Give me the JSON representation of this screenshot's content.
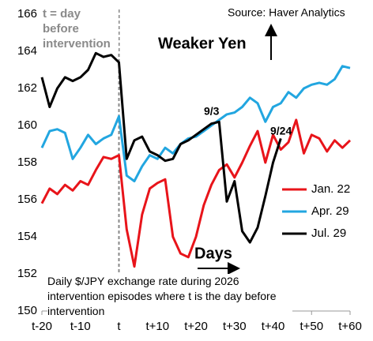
{
  "chart_data": {
    "type": "line",
    "source": "Source: Haver Analytics",
    "annotation_left": "t = day before intervention",
    "annotation_up": "Weaker Yen",
    "annotation_right": "Days",
    "caption": "Daily $/JPY exchange rate during 2026 intervention episodes where t is the day before intervention",
    "label_a": "9/3",
    "label_b": "9/24",
    "vline": 0,
    "x": [
      -20,
      -18,
      -16,
      -14,
      -12,
      -10,
      -8,
      -6,
      -4,
      -2,
      0,
      2,
      4,
      6,
      8,
      10,
      12,
      14,
      16,
      18,
      20,
      22,
      24,
      26,
      28,
      30,
      32,
      34,
      36,
      38,
      40,
      42,
      44,
      46,
      48,
      50,
      52,
      54,
      56,
      58,
      60
    ],
    "series": [
      {
        "name": "Jan. 22",
        "color": "#e8141a",
        "values": [
          155.8,
          156.6,
          156.3,
          156.8,
          156.5,
          157.0,
          156.8,
          157.6,
          158.3,
          158.2,
          158.4,
          154.4,
          152.4,
          155.2,
          156.6,
          156.9,
          157.1,
          154.0,
          153.1,
          152.9,
          154.0,
          155.7,
          156.8,
          157.6,
          157.9,
          157.2,
          158.0,
          158.9,
          159.7,
          158.0,
          159.5,
          158.7,
          159.1,
          160.3,
          158.5,
          159.5,
          159.3,
          158.6,
          159.2,
          158.8,
          159.2
        ]
      },
      {
        "name": "Apr. 29",
        "color": "#22a6e0",
        "values": [
          158.8,
          159.7,
          159.8,
          159.6,
          158.2,
          158.8,
          159.5,
          159.0,
          159.3,
          159.5,
          160.5,
          157.3,
          157.0,
          157.8,
          158.4,
          158.2,
          158.8,
          158.5,
          159.0,
          159.3,
          159.4,
          159.7,
          160.0,
          160.3,
          160.6,
          160.7,
          161.0,
          161.5,
          161.2,
          160.2,
          161.0,
          161.2,
          161.8,
          161.5,
          162.0,
          162.2,
          162.3,
          162.2,
          162.5,
          163.2,
          163.1
        ]
      },
      {
        "name": "Jul. 29",
        "color": "#000000",
        "values": [
          162.6,
          161.0,
          162.0,
          162.6,
          162.4,
          162.6,
          163.0,
          163.9,
          163.7,
          163.8,
          163.4,
          158.2,
          159.2,
          159.4,
          158.6,
          158.4,
          158.1,
          158.2,
          159.0,
          159.2,
          159.5,
          159.8,
          160.1,
          160.2,
          155.9,
          157.0,
          154.3,
          153.7,
          154.5,
          156.2,
          158.0,
          159.3,
          null,
          null,
          null,
          null,
          null,
          null,
          null,
          null,
          null
        ]
      }
    ],
    "xlim": [
      -20,
      60
    ],
    "ylim": [
      150,
      166
    ],
    "xticks": [
      {
        "value": -20,
        "label": "t-20"
      },
      {
        "value": -10,
        "label": "t-10"
      },
      {
        "value": 0,
        "label": "t"
      },
      {
        "value": 10,
        "label": "t+10"
      },
      {
        "value": 20,
        "label": "t+20"
      },
      {
        "value": 30,
        "label": "t+30"
      },
      {
        "value": 40,
        "label": "t+40"
      },
      {
        "value": 50,
        "label": "t+50"
      },
      {
        "value": 60,
        "label": "t+60"
      }
    ],
    "yticks": [
      150,
      152,
      154,
      156,
      158,
      160,
      162,
      164,
      166
    ],
    "legend": "lower right"
  }
}
